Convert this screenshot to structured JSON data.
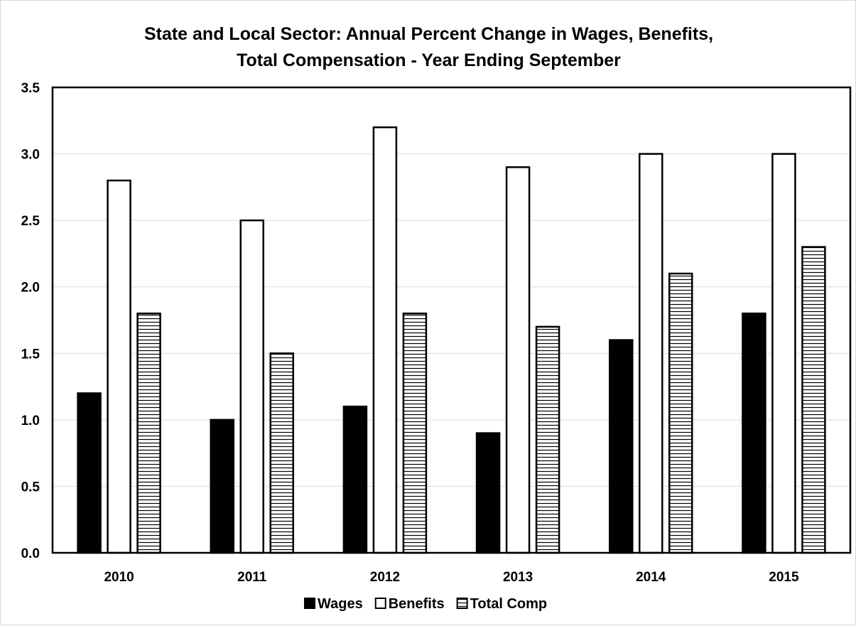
{
  "chart_data": {
    "type": "bar",
    "title_lines": [
      "State and Local Sector: Annual Percent Change in Wages, Benefits,",
      "Total Compensation - Year Ending September"
    ],
    "categories": [
      "2010",
      "2011",
      "2012",
      "2013",
      "2014",
      "2015"
    ],
    "series": [
      {
        "name": "Wages",
        "values": [
          1.2,
          1.0,
          1.1,
          0.9,
          1.6,
          1.8
        ],
        "fill": "solid-black"
      },
      {
        "name": "Benefits",
        "values": [
          2.8,
          2.5,
          3.2,
          2.9,
          3.0,
          3.0
        ],
        "fill": "white"
      },
      {
        "name": "Total Comp",
        "values": [
          1.8,
          1.5,
          1.8,
          1.7,
          2.1,
          2.3
        ],
        "fill": "horizontal-stripes"
      }
    ],
    "yticks": [
      "0.0",
      "0.5",
      "1.0",
      "1.5",
      "2.0",
      "2.5",
      "3.0",
      "3.5"
    ],
    "ylim": [
      0,
      3.5
    ],
    "grid": true,
    "legend_position": "bottom",
    "colors": {
      "bar_stroke": "#000000",
      "grid": "#d9d9d9",
      "wages_fill": "#000000",
      "benefits_fill": "#ffffff"
    }
  }
}
